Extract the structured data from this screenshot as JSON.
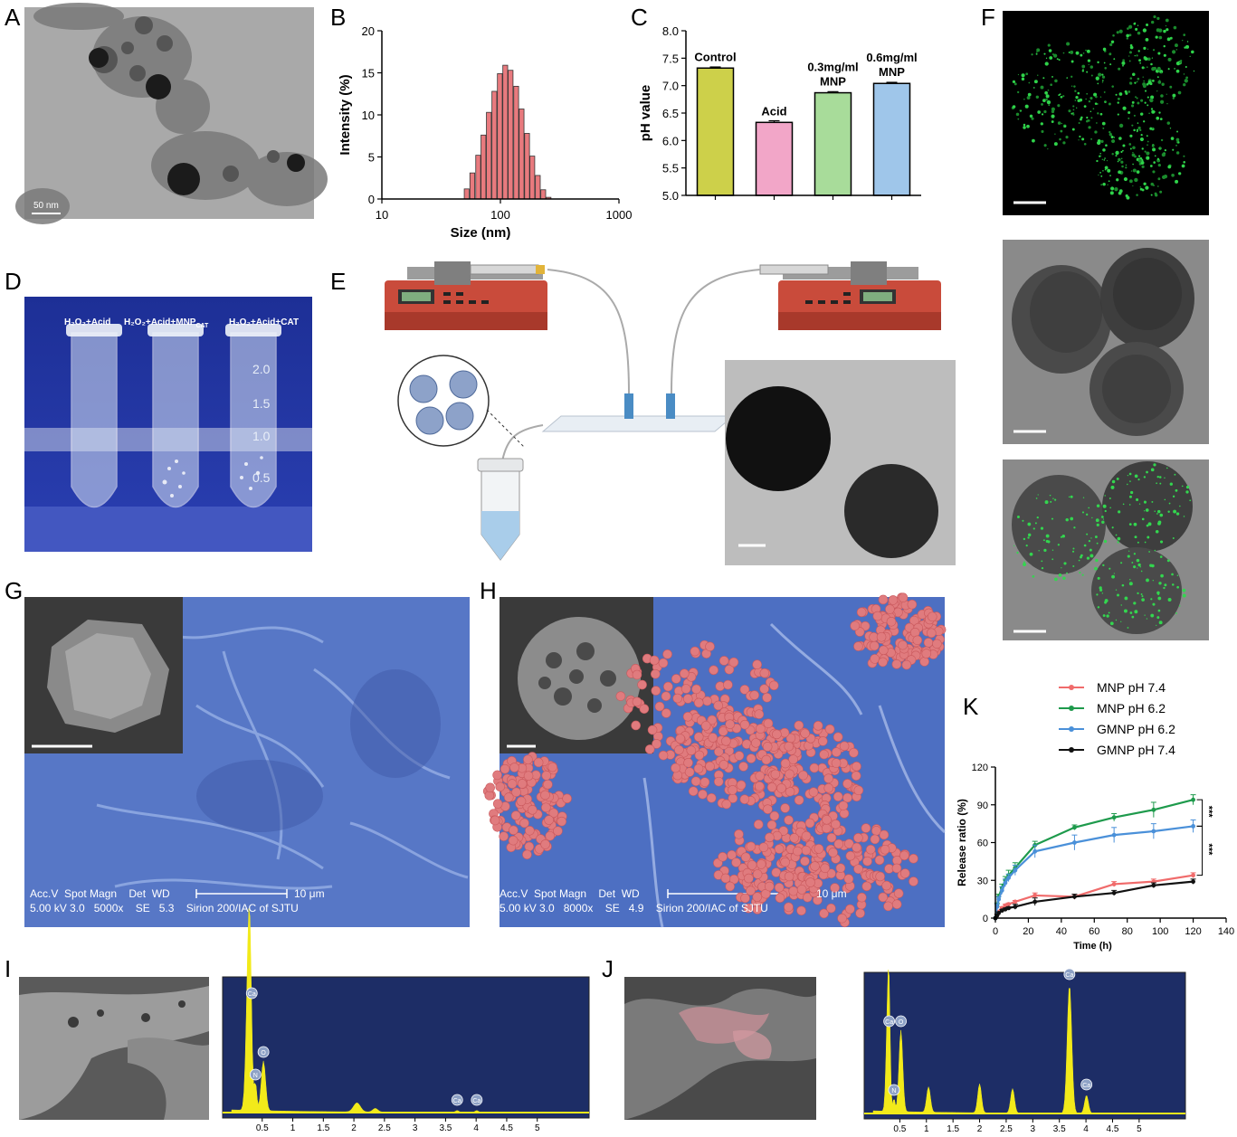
{
  "panels": {
    "A": "A",
    "B": "B",
    "C": "C",
    "D": "D",
    "E": "E",
    "F": "F",
    "G": "G",
    "H": "H",
    "I": "I",
    "J": "J",
    "K": "K"
  },
  "panel_a": {
    "scale": "50 nm"
  },
  "panel_d": {
    "tube1": "H₂O₂+Acid",
    "tube2_main": "H₂O₂+Acid+MNP",
    "tube2_sub": "CAT",
    "tube3": "H₂O₂+Acid+CAT",
    "marks": [
      "2.0",
      "1.5",
      "1.0",
      "0.5"
    ]
  },
  "panel_g": {
    "info_line1": "Acc.V  Spot Magn    Det  WD",
    "info_line2": "5.00 kV 3.0   5000x    SE   5.3    Sirion 200/IAC of SJTU",
    "scale": "10 μm"
  },
  "panel_h": {
    "info_line1": "Acc.V  Spot Magn    Det  WD",
    "info_line2": "5.00 kV 3.0   8000x    SE   4.9    Sirion 200/IAC of SJTU",
    "scale": "10 μm"
  },
  "panel_i_eds": {
    "peaks": [
      "C",
      "Ca",
      "N",
      "O",
      "Ca",
      "Ca"
    ],
    "ticks": [
      "0.5",
      "1",
      "1.5",
      "2",
      "2.5",
      "3",
      "3.5",
      "4",
      "4.5",
      "5"
    ]
  },
  "panel_j_eds": {
    "peaks": [
      "C",
      "Ca",
      "O",
      "N",
      "Ca",
      "Ca"
    ],
    "ticks": [
      "0.5",
      "1",
      "1.5",
      "2",
      "2.5",
      "3",
      "3.5",
      "4",
      "4.5",
      "5"
    ]
  },
  "chart_data": [
    {
      "panel": "B",
      "type": "bar",
      "x_scale": "log",
      "xlabel": "Size (nm)",
      "ylabel": "Intensity (%)",
      "xlim": [
        10,
        1000
      ],
      "ylim": [
        0,
        20
      ],
      "xticks": [
        "10",
        "100",
        "1000"
      ],
      "yticks": [
        "0",
        "5",
        "10",
        "15",
        "20"
      ],
      "bar_color": "#e87a7e",
      "x": [
        52,
        58,
        65,
        72,
        80,
        89,
        99,
        110,
        122,
        136,
        151,
        168,
        186,
        207,
        230,
        255
      ],
      "values": [
        1.2,
        3.1,
        5.2,
        7.6,
        10.3,
        12.8,
        14.9,
        15.9,
        15.3,
        13.4,
        10.7,
        7.8,
        5.1,
        2.8,
        1.1,
        0.2
      ]
    },
    {
      "panel": "C",
      "type": "bar",
      "ylabel": "pH value",
      "ylim": [
        5.0,
        8.0
      ],
      "yticks": [
        "5.0",
        "5.5",
        "6.0",
        "6.5",
        "7.0",
        "7.5",
        "8.0"
      ],
      "categories": [
        "Control",
        "Acid",
        "0.3mg/ml MNP",
        "0.6mg/ml MNP"
      ],
      "values": [
        7.32,
        6.33,
        6.87,
        7.04
      ],
      "errors": [
        0.02,
        0.03,
        0.02,
        0.02
      ],
      "colors": [
        "#cdd04a",
        "#f2a6c8",
        "#a8dc9a",
        "#9fc6ea"
      ]
    },
    {
      "panel": "K",
      "type": "line",
      "xlabel": "Time (h)",
      "ylabel": "Release ratio (%)",
      "xlim": [
        0,
        140
      ],
      "ylim": [
        0,
        120
      ],
      "xticks": [
        "0",
        "20",
        "40",
        "60",
        "80",
        "100",
        "120",
        "140"
      ],
      "yticks": [
        "0",
        "30",
        "60",
        "90",
        "120"
      ],
      "legend_position": "top-right",
      "significance": [
        "***",
        "***"
      ],
      "x": [
        0,
        1,
        2,
        4,
        6,
        8,
        12,
        24,
        48,
        72,
        96,
        120
      ],
      "series": [
        {
          "name": "MNP pH 7.4",
          "color": "#f06b6b",
          "marker": "circle",
          "values": [
            0,
            2,
            5,
            8,
            10,
            11,
            13,
            18,
            17,
            27,
            29,
            34
          ],
          "errors": [
            0,
            1,
            1,
            1,
            1,
            1,
            1,
            2,
            2,
            2,
            2,
            2
          ]
        },
        {
          "name": "MNP pH 6.2",
          "color": "#1e9a4c",
          "marker": "square",
          "values": [
            0,
            10,
            17,
            24,
            30,
            34,
            40,
            58,
            72,
            80,
            86,
            94
          ],
          "errors": [
            0,
            2,
            2,
            3,
            3,
            4,
            4,
            3,
            2,
            3,
            6,
            4
          ]
        },
        {
          "name": "GMNP pH 6.2",
          "color": "#4a90d9",
          "marker": "triangle-down",
          "values": [
            0,
            9,
            15,
            22,
            28,
            32,
            38,
            53,
            60,
            66,
            69,
            73
          ],
          "errors": [
            0,
            2,
            2,
            3,
            3,
            3,
            4,
            5,
            6,
            6,
            6,
            5
          ]
        },
        {
          "name": "GMNP pH 7.4",
          "color": "#111111",
          "marker": "triangle-up",
          "values": [
            0,
            2,
            4,
            6,
            7,
            8,
            9,
            13,
            17,
            20,
            26,
            29
          ],
          "errors": [
            0,
            1,
            1,
            1,
            1,
            1,
            2,
            3,
            2,
            2,
            2,
            2
          ]
        }
      ]
    }
  ]
}
